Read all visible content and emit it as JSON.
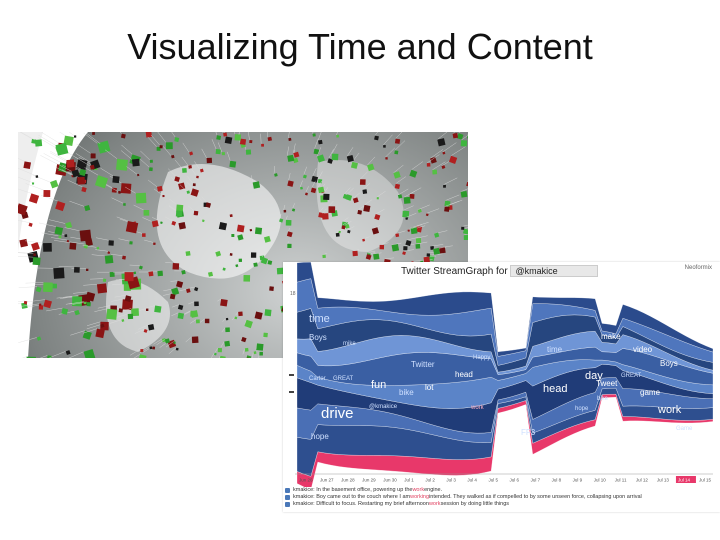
{
  "slide": {
    "title": "Visualizing Time and Content"
  },
  "streamgraph": {
    "header_label": "Twitter StreamGraph for",
    "user_field": "@kmakice",
    "brand": "Neoformix",
    "y_tick": "18",
    "dates": [
      "Jun 26",
      "Jun 27",
      "Jun 28",
      "Jun 29",
      "Jun 30",
      "Jul 1",
      "Jul 2",
      "Jul 3",
      "Jul 4",
      "Jul 5",
      "Jul 6",
      "Jul 7",
      "Jul 8",
      "Jul 9",
      "Jul 10",
      "Jul 11",
      "Jul 12",
      "Jul 13",
      "Jul 14",
      "Jul 15"
    ],
    "highlighted_date_index": 18,
    "words": [
      {
        "text": "time",
        "size": "large"
      },
      {
        "text": "Boys",
        "size": "medium"
      },
      {
        "text": "mike",
        "size": "small"
      },
      {
        "text": "Carter",
        "size": "small"
      },
      {
        "text": "GREAT",
        "size": "small"
      },
      {
        "text": "fun",
        "size": "large"
      },
      {
        "text": "bike",
        "size": "medium"
      },
      {
        "text": "lot",
        "size": "medium"
      },
      {
        "text": "Twitter",
        "size": "medium"
      },
      {
        "text": "head",
        "size": "medium"
      },
      {
        "text": "Happy",
        "size": "small"
      },
      {
        "text": "drive",
        "size": "xlarge"
      },
      {
        "text": "@kmakice",
        "size": "small"
      },
      {
        "text": "hope",
        "size": "medium"
      },
      {
        "text": "work",
        "size": "small"
      },
      {
        "text": "FF3",
        "size": "medium"
      },
      {
        "text": "time",
        "size": "medium"
      },
      {
        "text": "make",
        "size": "medium"
      },
      {
        "text": "video",
        "size": "medium"
      },
      {
        "text": "head",
        "size": "large"
      },
      {
        "text": "day",
        "size": "large"
      },
      {
        "text": "Tweet",
        "size": "medium"
      },
      {
        "text": "GREAT",
        "size": "small"
      },
      {
        "text": "bike",
        "size": "small"
      },
      {
        "text": "lot",
        "size": "large"
      },
      {
        "text": "game",
        "size": "medium"
      },
      {
        "text": "Boys",
        "size": "medium"
      },
      {
        "text": "work",
        "size": "large"
      },
      {
        "text": "hope",
        "size": "small"
      },
      {
        "text": "Game",
        "size": "small"
      }
    ],
    "tweets": [
      {
        "pre": "kmakice: In the basement office, powering up the ",
        "hl": "work",
        "post": " engine."
      },
      {
        "pre": "kmakice: Boy came out to the couch where I am ",
        "hl": "working",
        "post": " intended. They walked as if compelled to by some unseen force, collapsing upon arrival"
      },
      {
        "pre": "kmakice: Difficult to focus. Restarting my brief afternoon ",
        "hl": "work",
        "post": " session by doing little things"
      }
    ]
  }
}
